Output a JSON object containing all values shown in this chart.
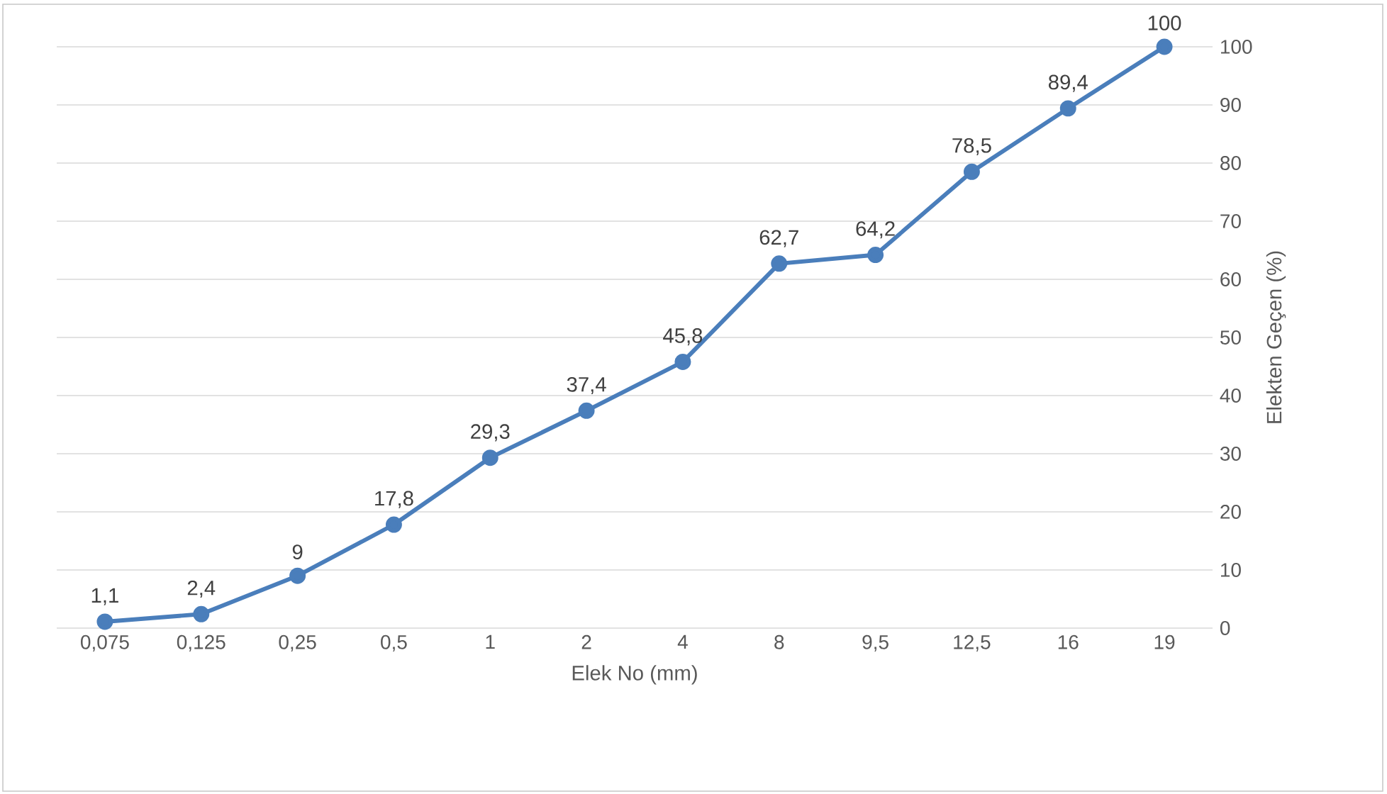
{
  "chart_data": {
    "type": "line",
    "xlabel": "Elek No (mm)",
    "ylabel": "Elekten Geçen (%)",
    "categories": [
      "0,075",
      "0,125",
      "0,25",
      "0,5",
      "1",
      "2",
      "4",
      "8",
      "9,5",
      "12,5",
      "16",
      "19"
    ],
    "series": [
      {
        "color": "#4a7ebb",
        "values": [
          1.1,
          2.4,
          9,
          17.8,
          29.3,
          37.4,
          45.8,
          62.7,
          64.2,
          78.5,
          89.4,
          100
        ],
        "value_labels": [
          "1,1",
          "2,4",
          "9",
          "17,8",
          "29,3",
          "37,4",
          "45,8",
          "62,7",
          "64,2",
          "78,5",
          "89,4",
          "100"
        ]
      }
    ],
    "ylim": [
      0,
      100
    ],
    "yticks": [
      0,
      10,
      20,
      30,
      40,
      50,
      60,
      70,
      80,
      90,
      100
    ],
    "grid": "y",
    "marker": "circle",
    "line_style": "solid"
  }
}
